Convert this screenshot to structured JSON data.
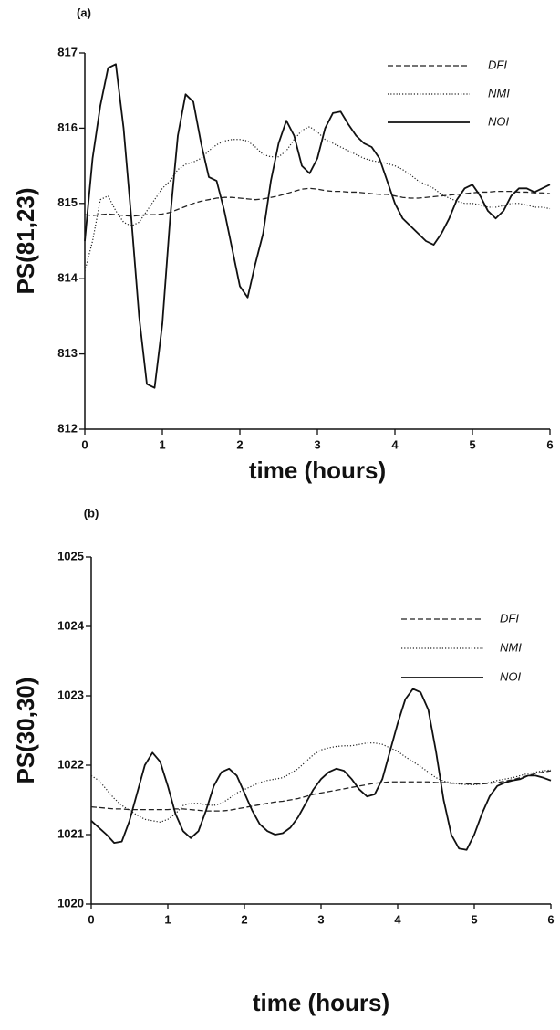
{
  "chart_data": [
    {
      "type": "line",
      "label": "(a)",
      "xlabel": "time (hours)",
      "ylabel": "PS(81,23)",
      "xlim": [
        0,
        6
      ],
      "ylim": [
        812,
        817
      ],
      "xticks": [
        0,
        1,
        2,
        3,
        4,
        5,
        6
      ],
      "yticks": [
        812,
        813,
        814,
        815,
        816,
        817
      ],
      "x": [
        0,
        0.1,
        0.2,
        0.3,
        0.4,
        0.5,
        0.6,
        0.7,
        0.8,
        0.9,
        1,
        1.1,
        1.2,
        1.3,
        1.4,
        1.5,
        1.6,
        1.7,
        1.8,
        1.9,
        2,
        2.1,
        2.2,
        2.3,
        2.4,
        2.5,
        2.6,
        2.7,
        2.8,
        2.9,
        3,
        3.1,
        3.2,
        3.3,
        3.4,
        3.5,
        3.6,
        3.7,
        3.8,
        3.9,
        4,
        4.1,
        4.2,
        4.3,
        4.4,
        4.5,
        4.6,
        4.7,
        4.8,
        4.9,
        5,
        5.1,
        5.2,
        5.3,
        5.4,
        5.5,
        5.6,
        5.7,
        5.8,
        5.9,
        6
      ],
      "series": [
        {
          "name": "DFI",
          "color": "#222222",
          "line_style": "dashed",
          "values": [
            814.85,
            814.84,
            814.85,
            814.86,
            814.85,
            814.84,
            814.83,
            814.84,
            814.85,
            814.85,
            814.86,
            814.88,
            814.92,
            814.96,
            815.0,
            815.03,
            815.05,
            815.07,
            815.08,
            815.08,
            815.07,
            815.06,
            815.05,
            815.06,
            815.08,
            815.1,
            815.13,
            815.16,
            815.19,
            815.2,
            815.19,
            815.17,
            815.16,
            815.16,
            815.15,
            815.15,
            815.14,
            815.13,
            815.12,
            815.12,
            815.1,
            815.08,
            815.07,
            815.07,
            815.08,
            815.09,
            815.1,
            815.11,
            815.12,
            815.13,
            815.14,
            815.15,
            815.15,
            815.16,
            815.16,
            815.16,
            815.15,
            815.15,
            815.14,
            815.14,
            815.13
          ]
        },
        {
          "name": "NMI",
          "color": "#222222",
          "line_style": "dotted",
          "values": [
            814.1,
            814.5,
            815.05,
            815.1,
            814.9,
            814.75,
            814.7,
            814.75,
            814.9,
            815.05,
            815.2,
            815.3,
            815.45,
            815.52,
            815.55,
            815.6,
            815.7,
            815.78,
            815.83,
            815.85,
            815.85,
            815.83,
            815.75,
            815.65,
            815.62,
            815.62,
            815.7,
            815.85,
            815.97,
            816.02,
            815.95,
            815.85,
            815.8,
            815.75,
            815.7,
            815.65,
            815.6,
            815.57,
            815.55,
            815.53,
            815.5,
            815.45,
            815.38,
            815.3,
            815.25,
            815.2,
            815.12,
            815.07,
            815.03,
            815.0,
            815.0,
            814.98,
            814.95,
            814.95,
            814.97,
            815.0,
            815.0,
            814.98,
            814.95,
            814.95,
            814.93
          ]
        },
        {
          "name": "NOI",
          "color": "#111111",
          "line_style": "solid",
          "values": [
            814.5,
            815.6,
            816.3,
            816.8,
            816.85,
            816.0,
            814.8,
            813.5,
            812.6,
            812.55,
            813.4,
            814.8,
            815.9,
            816.45,
            816.35,
            815.8,
            815.35,
            815.3,
            814.9,
            814.4,
            813.9,
            813.75,
            814.2,
            814.6,
            815.3,
            815.8,
            816.1,
            815.9,
            815.5,
            815.4,
            815.6,
            816.0,
            816.2,
            816.22,
            816.05,
            815.9,
            815.8,
            815.75,
            815.6,
            815.3,
            815.0,
            814.8,
            814.7,
            814.6,
            814.5,
            814.45,
            814.6,
            814.8,
            815.05,
            815.2,
            815.25,
            815.1,
            814.9,
            814.8,
            814.9,
            815.1,
            815.2,
            815.2,
            815.15,
            815.2,
            815.25
          ]
        }
      ]
    },
    {
      "type": "line",
      "label": "(b)",
      "xlabel": "time (hours)",
      "ylabel": "PS(30,30)",
      "xlim": [
        0,
        6
      ],
      "ylim": [
        1020,
        1025
      ],
      "xticks": [
        0,
        1,
        2,
        3,
        4,
        5,
        6
      ],
      "yticks": [
        1020,
        1021,
        1022,
        1023,
        1024,
        1025
      ],
      "x": [
        0,
        0.1,
        0.2,
        0.3,
        0.4,
        0.5,
        0.6,
        0.7,
        0.8,
        0.9,
        1,
        1.1,
        1.2,
        1.3,
        1.4,
        1.5,
        1.6,
        1.7,
        1.8,
        1.9,
        2,
        2.1,
        2.2,
        2.3,
        2.4,
        2.5,
        2.6,
        2.7,
        2.8,
        2.9,
        3,
        3.1,
        3.2,
        3.3,
        3.4,
        3.5,
        3.6,
        3.7,
        3.8,
        3.9,
        4,
        4.1,
        4.2,
        4.3,
        4.4,
        4.5,
        4.6,
        4.7,
        4.8,
        4.9,
        5,
        5.1,
        5.2,
        5.3,
        5.4,
        5.5,
        5.6,
        5.7,
        5.8,
        5.9,
        6
      ],
      "series": [
        {
          "name": "DFI",
          "color": "#222222",
          "line_style": "dashed",
          "values": [
            1021.4,
            1021.39,
            1021.38,
            1021.37,
            1021.37,
            1021.36,
            1021.36,
            1021.36,
            1021.36,
            1021.36,
            1021.36,
            1021.37,
            1021.37,
            1021.36,
            1021.35,
            1021.34,
            1021.34,
            1021.34,
            1021.35,
            1021.37,
            1021.39,
            1021.41,
            1021.43,
            1021.45,
            1021.47,
            1021.48,
            1021.5,
            1021.52,
            1021.55,
            1021.58,
            1021.6,
            1021.62,
            1021.64,
            1021.66,
            1021.68,
            1021.7,
            1021.72,
            1021.74,
            1021.75,
            1021.76,
            1021.76,
            1021.76,
            1021.76,
            1021.76,
            1021.76,
            1021.75,
            1021.75,
            1021.74,
            1021.74,
            1021.73,
            1021.73,
            1021.73,
            1021.74,
            1021.75,
            1021.77,
            1021.79,
            1021.82,
            1021.85,
            1021.88,
            1021.9,
            1021.92
          ]
        },
        {
          "name": "NMI",
          "color": "#222222",
          "line_style": "dotted",
          "values": [
            1021.85,
            1021.78,
            1021.65,
            1021.52,
            1021.42,
            1021.35,
            1021.28,
            1021.22,
            1021.2,
            1021.18,
            1021.22,
            1021.3,
            1021.42,
            1021.45,
            1021.45,
            1021.43,
            1021.42,
            1021.45,
            1021.52,
            1021.6,
            1021.65,
            1021.7,
            1021.75,
            1021.78,
            1021.8,
            1021.82,
            1021.88,
            1021.95,
            1022.05,
            1022.15,
            1022.22,
            1022.25,
            1022.27,
            1022.28,
            1022.28,
            1022.3,
            1022.32,
            1022.32,
            1022.3,
            1022.25,
            1022.2,
            1022.12,
            1022.05,
            1021.98,
            1021.9,
            1021.82,
            1021.77,
            1021.75,
            1021.73,
            1021.72,
            1021.72,
            1021.73,
            1021.75,
            1021.78,
            1021.8,
            1021.82,
            1021.85,
            1021.88,
            1021.9,
            1021.92,
            1021.93
          ]
        },
        {
          "name": "NOI",
          "color": "#111111",
          "line_style": "solid",
          "values": [
            1021.2,
            1021.1,
            1021.0,
            1020.88,
            1020.9,
            1021.2,
            1021.6,
            1022.0,
            1022.18,
            1022.05,
            1021.7,
            1021.3,
            1021.05,
            1020.95,
            1021.05,
            1021.35,
            1021.7,
            1021.9,
            1021.95,
            1021.85,
            1021.6,
            1021.35,
            1021.15,
            1021.05,
            1021.0,
            1021.02,
            1021.1,
            1021.25,
            1021.45,
            1021.65,
            1021.8,
            1021.9,
            1021.95,
            1021.92,
            1021.8,
            1021.65,
            1021.55,
            1021.58,
            1021.8,
            1022.2,
            1022.6,
            1022.95,
            1023.1,
            1023.05,
            1022.8,
            1022.2,
            1021.5,
            1021.0,
            1020.8,
            1020.78,
            1021.0,
            1021.3,
            1021.55,
            1021.7,
            1021.75,
            1021.78,
            1021.8,
            1021.85,
            1021.85,
            1021.82,
            1021.78
          ]
        }
      ]
    }
  ]
}
